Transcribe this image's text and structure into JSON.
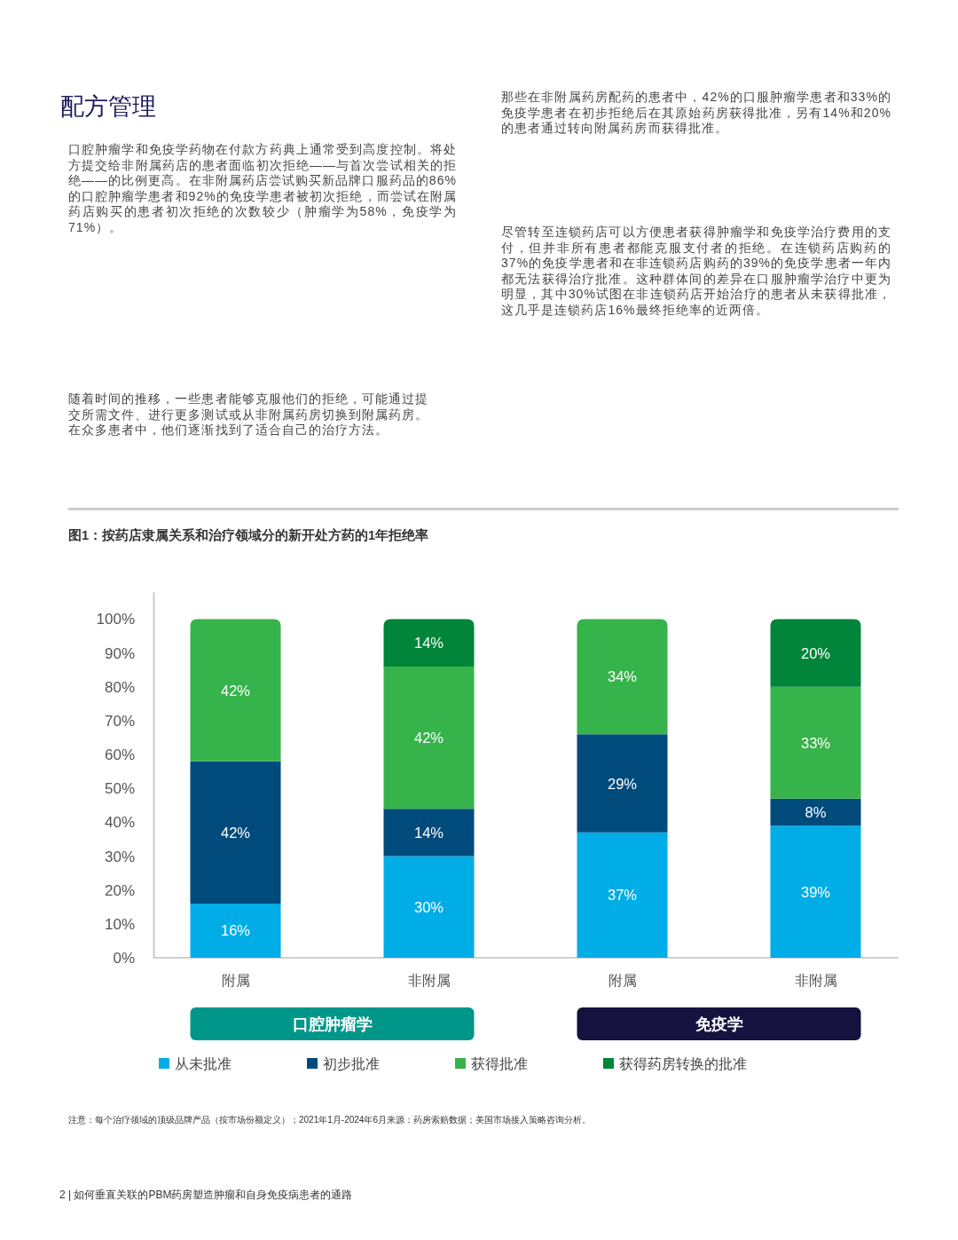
{
  "chart_data": {
    "type": "bar",
    "stacked": true,
    "title": "图1：按药店隶属关系和治疗领域分的新开处方药的1年拒绝率",
    "categories": [
      "附属",
      "非附属",
      "附属",
      "非附属"
    ],
    "series": [
      {
        "name": "从未批准",
        "color": "#00ade6",
        "values": [
          16,
          30,
          37,
          39
        ],
        "value_labels": [
          "16%",
          "30%",
          "37%",
          "39%"
        ]
      },
      {
        "name": "初步批准",
        "color": "#004a7c",
        "values": [
          42,
          14,
          29,
          8
        ],
        "value_labels": [
          "42%",
          "14%",
          "29%",
          "8%"
        ]
      },
      {
        "name": "获得批准",
        "color": "#36b34a",
        "values": [
          42,
          42,
          34,
          33
        ],
        "value_labels": [
          "42%",
          "42%",
          "34%",
          "33%"
        ]
      },
      {
        "name": "获得药房转换的批准",
        "color": "#00853a",
        "values": [
          null,
          14,
          null,
          20
        ],
        "value_labels": [
          null,
          "14%",
          null,
          "20%"
        ]
      }
    ],
    "ylim": [
      0,
      108
    ],
    "yticks": [
      {
        "value": 0,
        "label": "0%"
      },
      {
        "value": 10,
        "label": "10%"
      },
      {
        "value": 20,
        "label": "20%"
      },
      {
        "value": 30,
        "label": "30%"
      },
      {
        "value": 40,
        "label": "40%"
      },
      {
        "value": 50,
        "label": "50%"
      },
      {
        "value": 60,
        "label": "60%"
      },
      {
        "value": 70,
        "label": "70%"
      },
      {
        "value": 80,
        "label": "80%"
      },
      {
        "value": 90,
        "label": "90%"
      },
      {
        "value": 100,
        "label": "100%"
      }
    ],
    "legend": "bottom",
    "annotations": [
      "配方管理",
      "口腔肿瘤学和免疫学药物在付款方药典上通常受到高度控制。将处方提交给非附属药店的患者面临初次拒绝——与首次尝试相关的拒绝——的比例更高。在非附属药店尝试购买新品牌口服药品的86%的口腔肿瘤学患者和92%的免疫学患者被初次拒绝，而尝试在附属药店购买的患者初次拒绝的次数较少（肿瘤学为58%，免疫学为71%）。",
      "随着时间的推移，一些患者能够克服他们的拒绝，可能通过提交所需文件、进行更多测试或从非附属药房切换到附属药房。在众多患者中，他们逐渐找到了适合自己的治疗方法。",
      "那些在非附属药房配药的患者中，42%的口服肿瘤学患者和33%的免疫学患者在初步拒绝后在其原始药房获得批准，另有14%和20%的患者通过转向附属药房而获得批准。",
      "尽管转至连锁药店可以方便患者获得肿瘤学和免疫学治疗费用的支付，但并非所有患者都能克服支付者的拒绝。在连锁药店购药的37%的免疫学患者和在非连锁药店购药的39%的免疫学患者一年内都无法获得治疗批准。这种群体间的差异在口服肿瘤学治疗中更为明显，其中30%试图在非连锁药店开始治疗的患者从未获得批准，这几乎是连锁药店16%最终拒绝率的近两倍。",
      "口腔肿瘤学",
      "免疫学",
      "注意：每个治疗领域的顶级品牌产品（按市场份额定义）；2021年1月-2024年6月来源：药房索赔数据；美国市场接入策略咨询分析。",
      "2 | 如何垂直关联的PBM药房塑造肿瘤和自身免疫病患者的通路"
    ]
  }
}
